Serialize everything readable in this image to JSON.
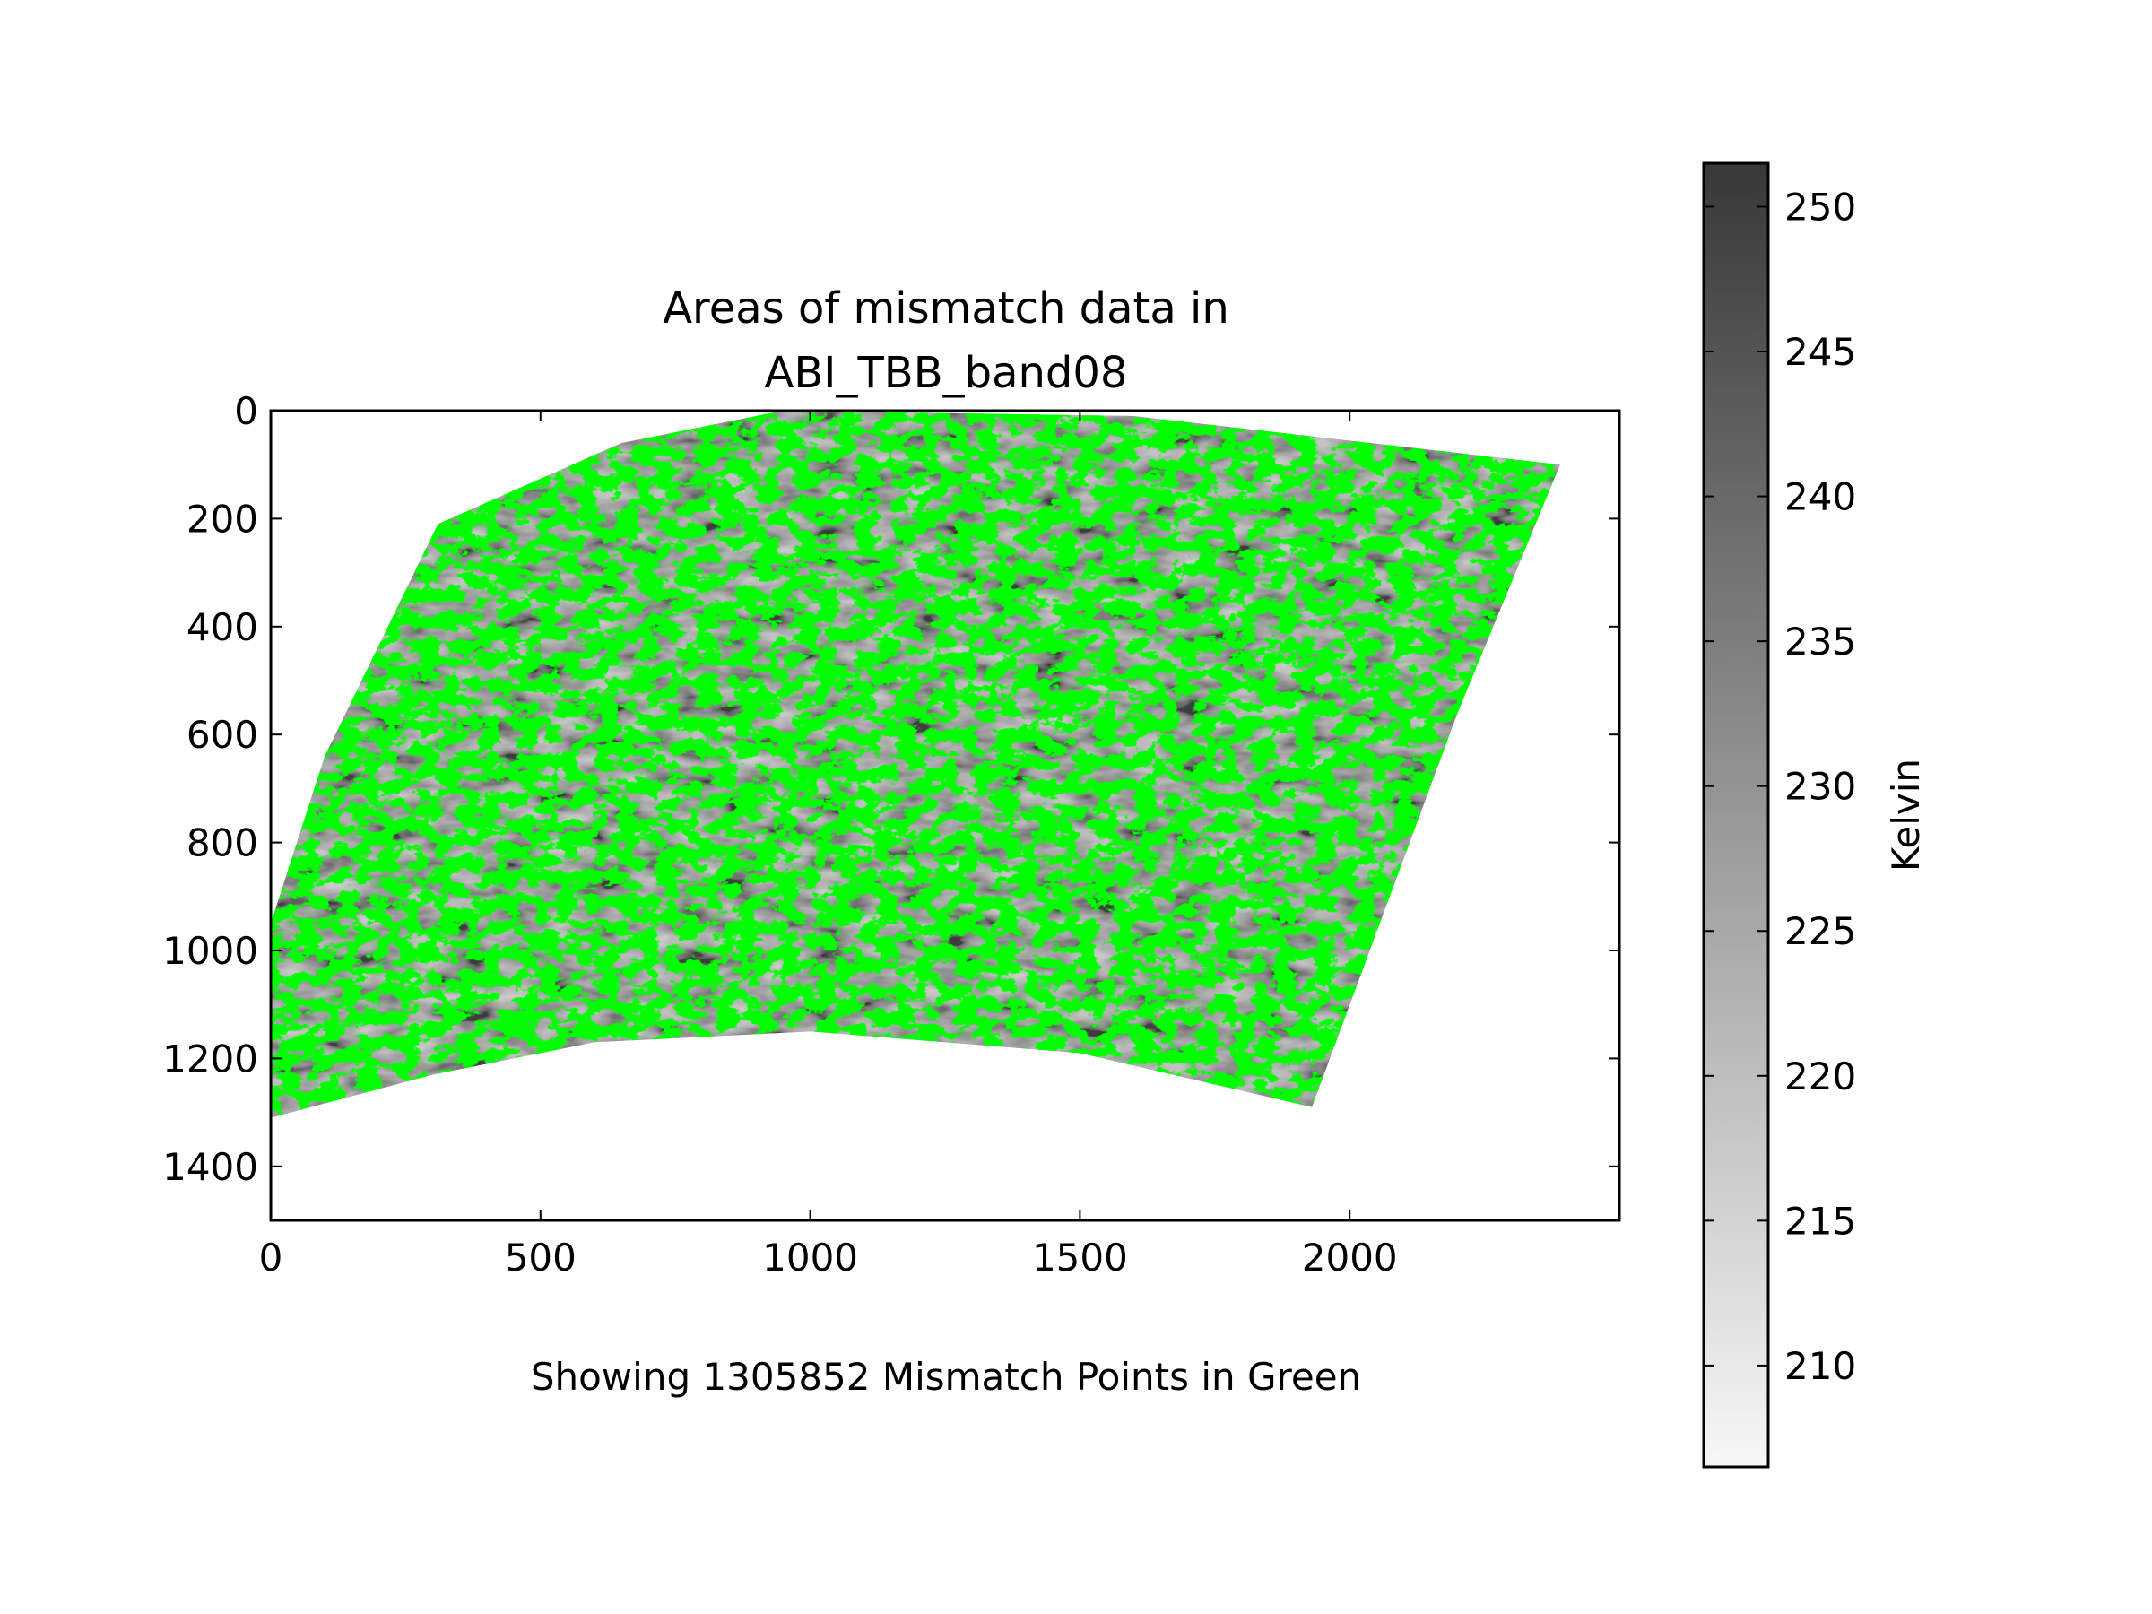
{
  "chart_data": {
    "type": "heatmap",
    "title": "Areas of mismatch data in\nABI_TBB_band08",
    "title_lines": [
      "Areas of mismatch data in",
      "ABI_TBB_band08"
    ],
    "xlabel": "Showing 1305852 Mismatch Points in Green",
    "ylabel": "",
    "xlim": [
      0,
      2500
    ],
    "ylim": [
      1500,
      0
    ],
    "x_ticks": [
      0,
      500,
      1000,
      1500,
      2000
    ],
    "y_ticks": [
      0,
      200,
      400,
      600,
      800,
      1000,
      1200,
      1400
    ],
    "mismatch_count": 1305852,
    "mismatch_color": "#00ff00",
    "colorbar": {
      "label": "Kelvin",
      "min": 206.5,
      "max": 251.5,
      "ticks": [
        210,
        215,
        220,
        225,
        230,
        235,
        240,
        245,
        250
      ],
      "cmap": "Greys",
      "color_low": "#f7f7f7",
      "color_high": "#383838"
    },
    "swath_outline": [
      [
        0,
        950
      ],
      [
        100,
        640
      ],
      [
        310,
        210
      ],
      [
        650,
        60
      ],
      [
        950,
        0
      ],
      [
        1600,
        10
      ],
      [
        2390,
        100
      ],
      [
        2200,
        560
      ],
      [
        1930,
        1290
      ],
      [
        1500,
        1190
      ],
      [
        1000,
        1150
      ],
      [
        600,
        1170
      ],
      [
        300,
        1230
      ],
      [
        0,
        1310
      ]
    ]
  }
}
